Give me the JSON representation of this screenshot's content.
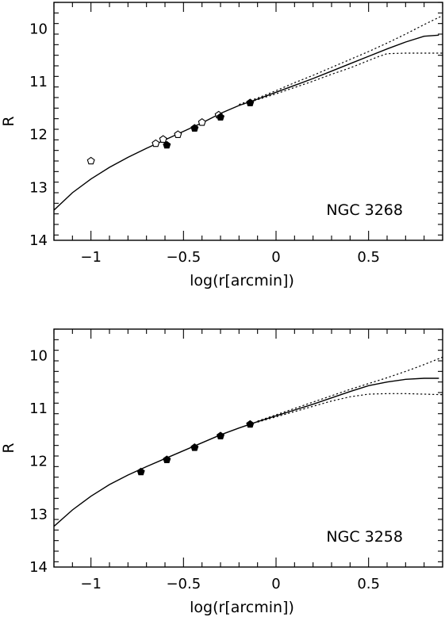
{
  "chart_data": [
    {
      "type": "scatter",
      "galaxy_label": "NGC 3268",
      "xlabel": "log(r[arcmin])",
      "ylabel": "R",
      "xlim": [
        -1.2,
        0.9
      ],
      "ylim": [
        14,
        9.5
      ],
      "y_inverted": true,
      "xticks": [
        -1,
        -0.5,
        0,
        0.5
      ],
      "xtick_labels": [
        "−1",
        "−0.5",
        "0",
        "0.5"
      ],
      "yticks": [
        10,
        11,
        12,
        13,
        14
      ],
      "ytick_labels": [
        "10",
        "11",
        "12",
        "13",
        "14"
      ],
      "grid": false,
      "lines": [
        {
          "style": "solid",
          "x": [
            -1.2,
            -1.1,
            -1.0,
            -0.9,
            -0.8,
            -0.7,
            -0.6,
            -0.5,
            -0.4,
            -0.3,
            -0.2,
            -0.1,
            0.0,
            0.1,
            0.2,
            0.3,
            0.4,
            0.5,
            0.6,
            0.7,
            0.8,
            0.88
          ],
          "y": [
            13.43,
            13.1,
            12.84,
            12.62,
            12.43,
            12.26,
            12.1,
            11.94,
            11.78,
            11.6,
            11.45,
            11.33,
            11.2,
            11.07,
            10.94,
            10.8,
            10.66,
            10.52,
            10.38,
            10.25,
            10.14,
            10.12
          ]
        },
        {
          "style": "dotted",
          "x": [
            -0.2,
            -0.1,
            0.0,
            0.1,
            0.2,
            0.3,
            0.4,
            0.5,
            0.6,
            0.7,
            0.8,
            0.9
          ],
          "y": [
            11.43,
            11.31,
            11.17,
            11.02,
            10.88,
            10.73,
            10.58,
            10.43,
            10.27,
            10.1,
            9.92,
            9.75
          ]
        },
        {
          "style": "dotted",
          "x": [
            -0.2,
            -0.1,
            0.0,
            0.1,
            0.2,
            0.3,
            0.4,
            0.5,
            0.55,
            0.6,
            0.7,
            0.8,
            0.9
          ],
          "y": [
            11.45,
            11.34,
            11.23,
            11.11,
            10.99,
            10.86,
            10.74,
            10.6,
            10.53,
            10.47,
            10.46,
            10.46,
            10.46
          ]
        }
      ],
      "points": [
        {
          "marker": "open",
          "x": -1.0,
          "y": 12.5
        },
        {
          "marker": "open",
          "x": -0.65,
          "y": 12.17
        },
        {
          "marker": "open",
          "x": -0.61,
          "y": 12.09
        },
        {
          "marker": "open",
          "x": -0.53,
          "y": 12.0
        },
        {
          "marker": "open",
          "x": -0.4,
          "y": 11.77
        },
        {
          "marker": "open",
          "x": -0.31,
          "y": 11.63
        },
        {
          "marker": "filled",
          "x": -0.59,
          "y": 12.2
        },
        {
          "marker": "filled",
          "x": -0.44,
          "y": 11.88
        },
        {
          "marker": "filled",
          "x": -0.3,
          "y": 11.67
        },
        {
          "marker": "filled",
          "x": -0.14,
          "y": 11.4
        }
      ]
    },
    {
      "type": "scatter",
      "galaxy_label": "NGC 3258",
      "xlabel": "log(r[arcmin])",
      "ylabel": "R",
      "xlim": [
        -1.2,
        0.9
      ],
      "ylim": [
        14,
        9.5
      ],
      "y_inverted": true,
      "xticks": [
        -1,
        -0.5,
        0,
        0.5
      ],
      "xtick_labels": [
        "−1",
        "−0.5",
        "0",
        "0.5"
      ],
      "yticks": [
        10,
        11,
        12,
        13,
        14
      ],
      "ytick_labels": [
        "10",
        "11",
        "12",
        "13",
        "14"
      ],
      "grid": false,
      "lines": [
        {
          "style": "solid",
          "x": [
            -1.2,
            -1.1,
            -1.0,
            -0.9,
            -0.8,
            -0.7,
            -0.6,
            -0.5,
            -0.4,
            -0.3,
            -0.2,
            -0.1,
            0.0,
            0.1,
            0.2,
            0.3,
            0.4,
            0.5,
            0.6,
            0.7,
            0.8,
            0.88
          ],
          "y": [
            13.23,
            12.92,
            12.66,
            12.44,
            12.26,
            12.1,
            11.95,
            11.8,
            11.65,
            11.5,
            11.37,
            11.25,
            11.14,
            11.03,
            10.92,
            10.8,
            10.68,
            10.57,
            10.5,
            10.45,
            10.43,
            10.43
          ]
        },
        {
          "style": "dotted",
          "x": [
            -0.1,
            0.0,
            0.1,
            0.2,
            0.3,
            0.4,
            0.5,
            0.6,
            0.7,
            0.8,
            0.9
          ],
          "y": [
            11.24,
            11.12,
            11.0,
            10.88,
            10.76,
            10.64,
            10.53,
            10.42,
            10.3,
            10.17,
            10.03
          ]
        },
        {
          "style": "dotted",
          "x": [
            -0.1,
            0.0,
            0.1,
            0.2,
            0.3,
            0.4,
            0.5,
            0.6,
            0.7,
            0.8,
            0.9
          ],
          "y": [
            11.26,
            11.16,
            11.06,
            10.96,
            10.86,
            10.78,
            10.73,
            10.72,
            10.72,
            10.73,
            10.74
          ]
        }
      ],
      "points": [
        {
          "marker": "filled",
          "x": -0.73,
          "y": 12.2
        },
        {
          "marker": "filled",
          "x": -0.59,
          "y": 11.97
        },
        {
          "marker": "filled",
          "x": -0.44,
          "y": 11.74
        },
        {
          "marker": "filled",
          "x": -0.3,
          "y": 11.52
        },
        {
          "marker": "filled",
          "x": -0.14,
          "y": 11.3
        }
      ]
    }
  ]
}
